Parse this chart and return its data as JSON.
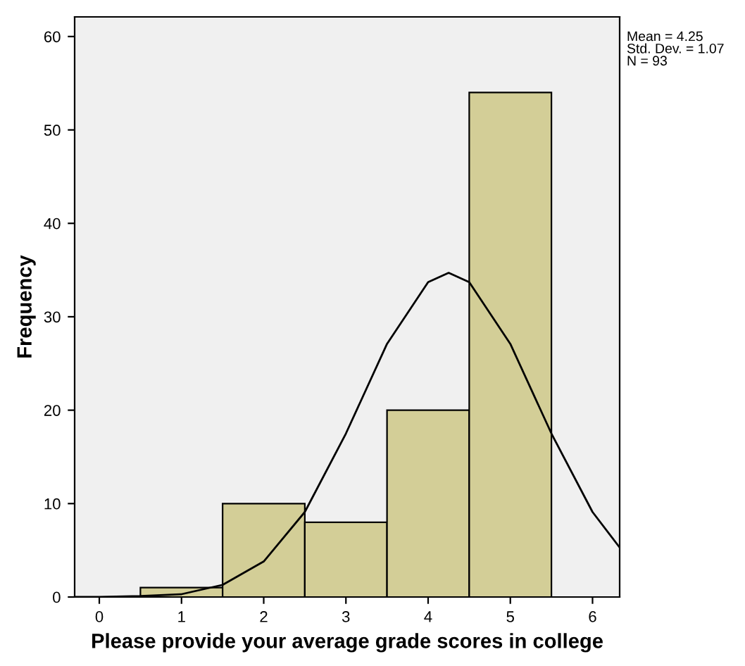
{
  "chart_data": {
    "type": "histogram",
    "xlabel": "Please provide your average grade scores in college",
    "ylabel": "Frequency",
    "bins": [
      0.5,
      1.5,
      2.5,
      3.5,
      4.5,
      5.5
    ],
    "values": [
      1,
      10,
      8,
      20,
      54
    ],
    "color": "#d3ce97",
    "series": [
      {
        "type": "line",
        "color": "#000000",
        "x": [
          -0.3,
          0,
          0.5,
          1,
          1.5,
          2,
          2.5,
          3,
          3.5,
          4,
          4.25,
          4.5,
          5,
          5.5,
          6,
          6.33
        ],
        "values": [
          0,
          0,
          0.1,
          0.3,
          1.3,
          3.8,
          9.1,
          17.5,
          27.1,
          33.7,
          34.7,
          33.7,
          27.1,
          17.5,
          9.1,
          5.3
        ]
      }
    ],
    "xlim": [
      -0.3,
      6.33
    ],
    "xticks": [
      0,
      1,
      2,
      3,
      4,
      5,
      6
    ],
    "ylim": [
      0,
      62.1
    ],
    "yticks": [
      0,
      10,
      20,
      30,
      40,
      50,
      60
    ],
    "annotations": [
      "Mean = 4.25\nStd. Dev. = 1.07\nN = 93"
    ],
    "grid": false,
    "legend": false
  }
}
